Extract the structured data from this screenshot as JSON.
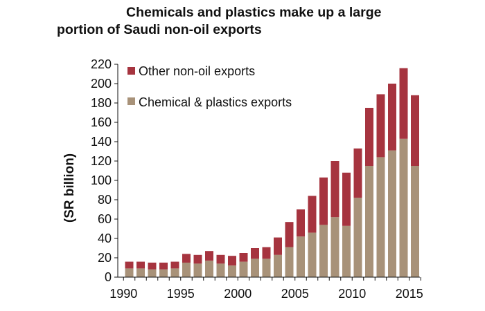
{
  "chart_data": {
    "type": "bar",
    "stacked": true,
    "title_lines": [
      "Chemicals and plastics make up a large",
      "portion of Saudi non-oil exports"
    ],
    "ylabel": "(SR billion)",
    "xlabel": "",
    "ylim": [
      0,
      220
    ],
    "yticks": [
      0,
      20,
      40,
      60,
      80,
      100,
      120,
      140,
      160,
      180,
      200,
      220
    ],
    "xticks": [
      "1990",
      "1995",
      "2000",
      "2005",
      "2010",
      "2015"
    ],
    "grid": false,
    "legend_position": "top-left",
    "categories": [
      "1990",
      "1991",
      "1992",
      "1993",
      "1994",
      "1995",
      "1996",
      "1997",
      "1998",
      "1999",
      "2000",
      "2001",
      "2002",
      "2003",
      "2004",
      "2005",
      "2006",
      "2007",
      "2008",
      "2009",
      "2010",
      "2011",
      "2012",
      "2013",
      "2014",
      "2015"
    ],
    "series": [
      {
        "name": "Chemical & plastics exports",
        "color": "#A89279",
        "values": [
          9,
          9,
          8,
          8,
          9,
          15,
          14,
          17,
          14,
          12,
          16,
          19,
          19,
          23,
          31,
          42,
          46,
          54,
          62,
          53,
          82,
          115,
          124,
          131,
          143,
          115
        ]
      },
      {
        "name": "Other non-oil exports",
        "color": "#A6343F",
        "values": [
          7,
          7,
          7,
          7,
          7,
          9,
          9,
          10,
          9,
          10,
          9,
          11,
          12,
          18,
          26,
          28,
          38,
          49,
          58,
          55,
          51,
          60,
          65,
          69,
          73,
          73
        ]
      }
    ],
    "legend_order": [
      "Other non-oil exports",
      "Chemical & plastics exports"
    ]
  }
}
